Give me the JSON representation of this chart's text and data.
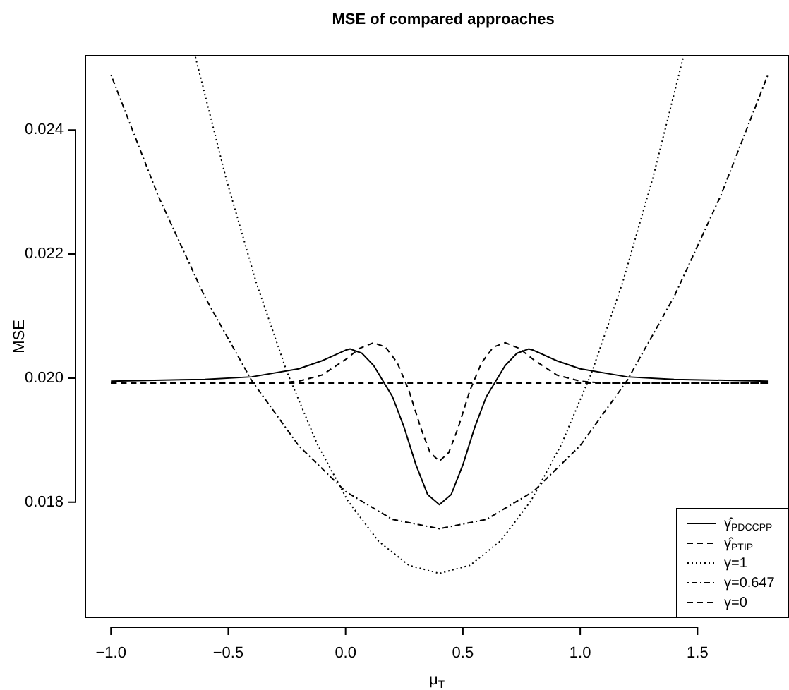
{
  "chart_data": {
    "type": "line",
    "title": "MSE of compared approaches",
    "xlabel": "μ$_{T}$",
    "ylabel": "MSE",
    "xlim": [
      -1.112,
      1.89
    ],
    "ylim": [
      0.01613,
      0.02521
    ],
    "xticks": [
      {
        "value": -1,
        "label": "−1.0"
      },
      {
        "value": -0.5,
        "label": "−0.5"
      },
      {
        "value": 0,
        "label": "0.0"
      },
      {
        "value": 0.5,
        "label": "0.5"
      },
      {
        "value": 1,
        "label": "1.0"
      },
      {
        "value": 1.5,
        "label": "1.5"
      }
    ],
    "yticks": [
      {
        "value": 0.018,
        "label": "0.018"
      },
      {
        "value": 0.02,
        "label": "0.020"
      },
      {
        "value": 0.022,
        "label": "0.022"
      },
      {
        "value": 0.024,
        "label": "0.024"
      }
    ],
    "grid": false,
    "legend": "bottom right",
    "marker": "none",
    "series": [
      {
        "name": "γ̂$_{PDCCPP}$",
        "color": "#000000",
        "line_style": "solid",
        "x": [
          -1,
          -0.6,
          -0.4,
          -0.2,
          -0.1,
          0,
          0.02,
          0.07,
          0.12,
          0.2,
          0.25,
          0.3,
          0.35,
          0.4,
          0.45,
          0.5,
          0.55,
          0.6,
          0.68,
          0.73,
          0.78,
          0.8,
          0.9,
          1.0,
          1.2,
          1.4,
          1.8
        ],
        "values": [
          0.01995,
          0.01998,
          0.02002,
          0.02015,
          0.02028,
          0.02045,
          0.02047,
          0.0204,
          0.0202,
          0.0197,
          0.0192,
          0.0186,
          0.01812,
          0.01796,
          0.01812,
          0.0186,
          0.0192,
          0.0197,
          0.0202,
          0.0204,
          0.02047,
          0.02045,
          0.02028,
          0.02015,
          0.02002,
          0.01998,
          0.01995
        ]
      },
      {
        "name": "γ̂$_{PTIP}$",
        "color": "#000000",
        "line_style": "dashed",
        "x": [
          -1,
          -0.3,
          -0.2,
          -0.1,
          0,
          0.06,
          0.12,
          0.17,
          0.22,
          0.27,
          0.32,
          0.36,
          0.4,
          0.44,
          0.48,
          0.53,
          0.58,
          0.63,
          0.68,
          0.74,
          0.8,
          0.9,
          1.0,
          1.1,
          1.8
        ],
        "values": [
          0.01992,
          0.01992,
          0.01995,
          0.02005,
          0.0203,
          0.02048,
          0.02057,
          0.0205,
          0.02025,
          0.0198,
          0.0192,
          0.0188,
          0.01866,
          0.0188,
          0.0192,
          0.0198,
          0.02025,
          0.0205,
          0.02057,
          0.02048,
          0.0203,
          0.02005,
          0.01995,
          0.01992,
          0.01992
        ]
      },
      {
        "name": "γ=1",
        "color": "#000000",
        "line_style": "dotted",
        "x": [
          -0.64,
          -0.51,
          -0.38,
          -0.25,
          -0.12,
          0.01,
          0.14,
          0.27,
          0.4,
          0.53,
          0.66,
          0.79,
          0.92,
          1.05,
          1.18,
          1.31,
          1.44
        ],
        "values": [
          0.02518,
          0.02323,
          0.02153,
          0.0201,
          0.01893,
          0.01802,
          0.01737,
          0.01698,
          0.01685,
          0.01698,
          0.01737,
          0.01802,
          0.01893,
          0.0201,
          0.02153,
          0.02323,
          0.02518
        ]
      },
      {
        "name": "γ=0.647",
        "color": "#000000",
        "line_style": "dashdot",
        "x": [
          -1,
          -0.8,
          -0.6,
          -0.4,
          -0.2,
          0,
          0.2,
          0.4,
          0.6,
          0.8,
          1.0,
          1.2,
          1.4,
          1.6,
          1.8
        ],
        "values": [
          0.02489,
          0.02295,
          0.02131,
          0.01996,
          0.01891,
          0.01817,
          0.01772,
          0.01757,
          0.01772,
          0.01817,
          0.01891,
          0.01996,
          0.02131,
          0.02295,
          0.02489
        ]
      },
      {
        "name": "γ=0",
        "color": "#000000",
        "line_style": "dashed",
        "x": [
          -1,
          1.8
        ],
        "values": [
          0.01992,
          0.01992
        ]
      }
    ]
  }
}
